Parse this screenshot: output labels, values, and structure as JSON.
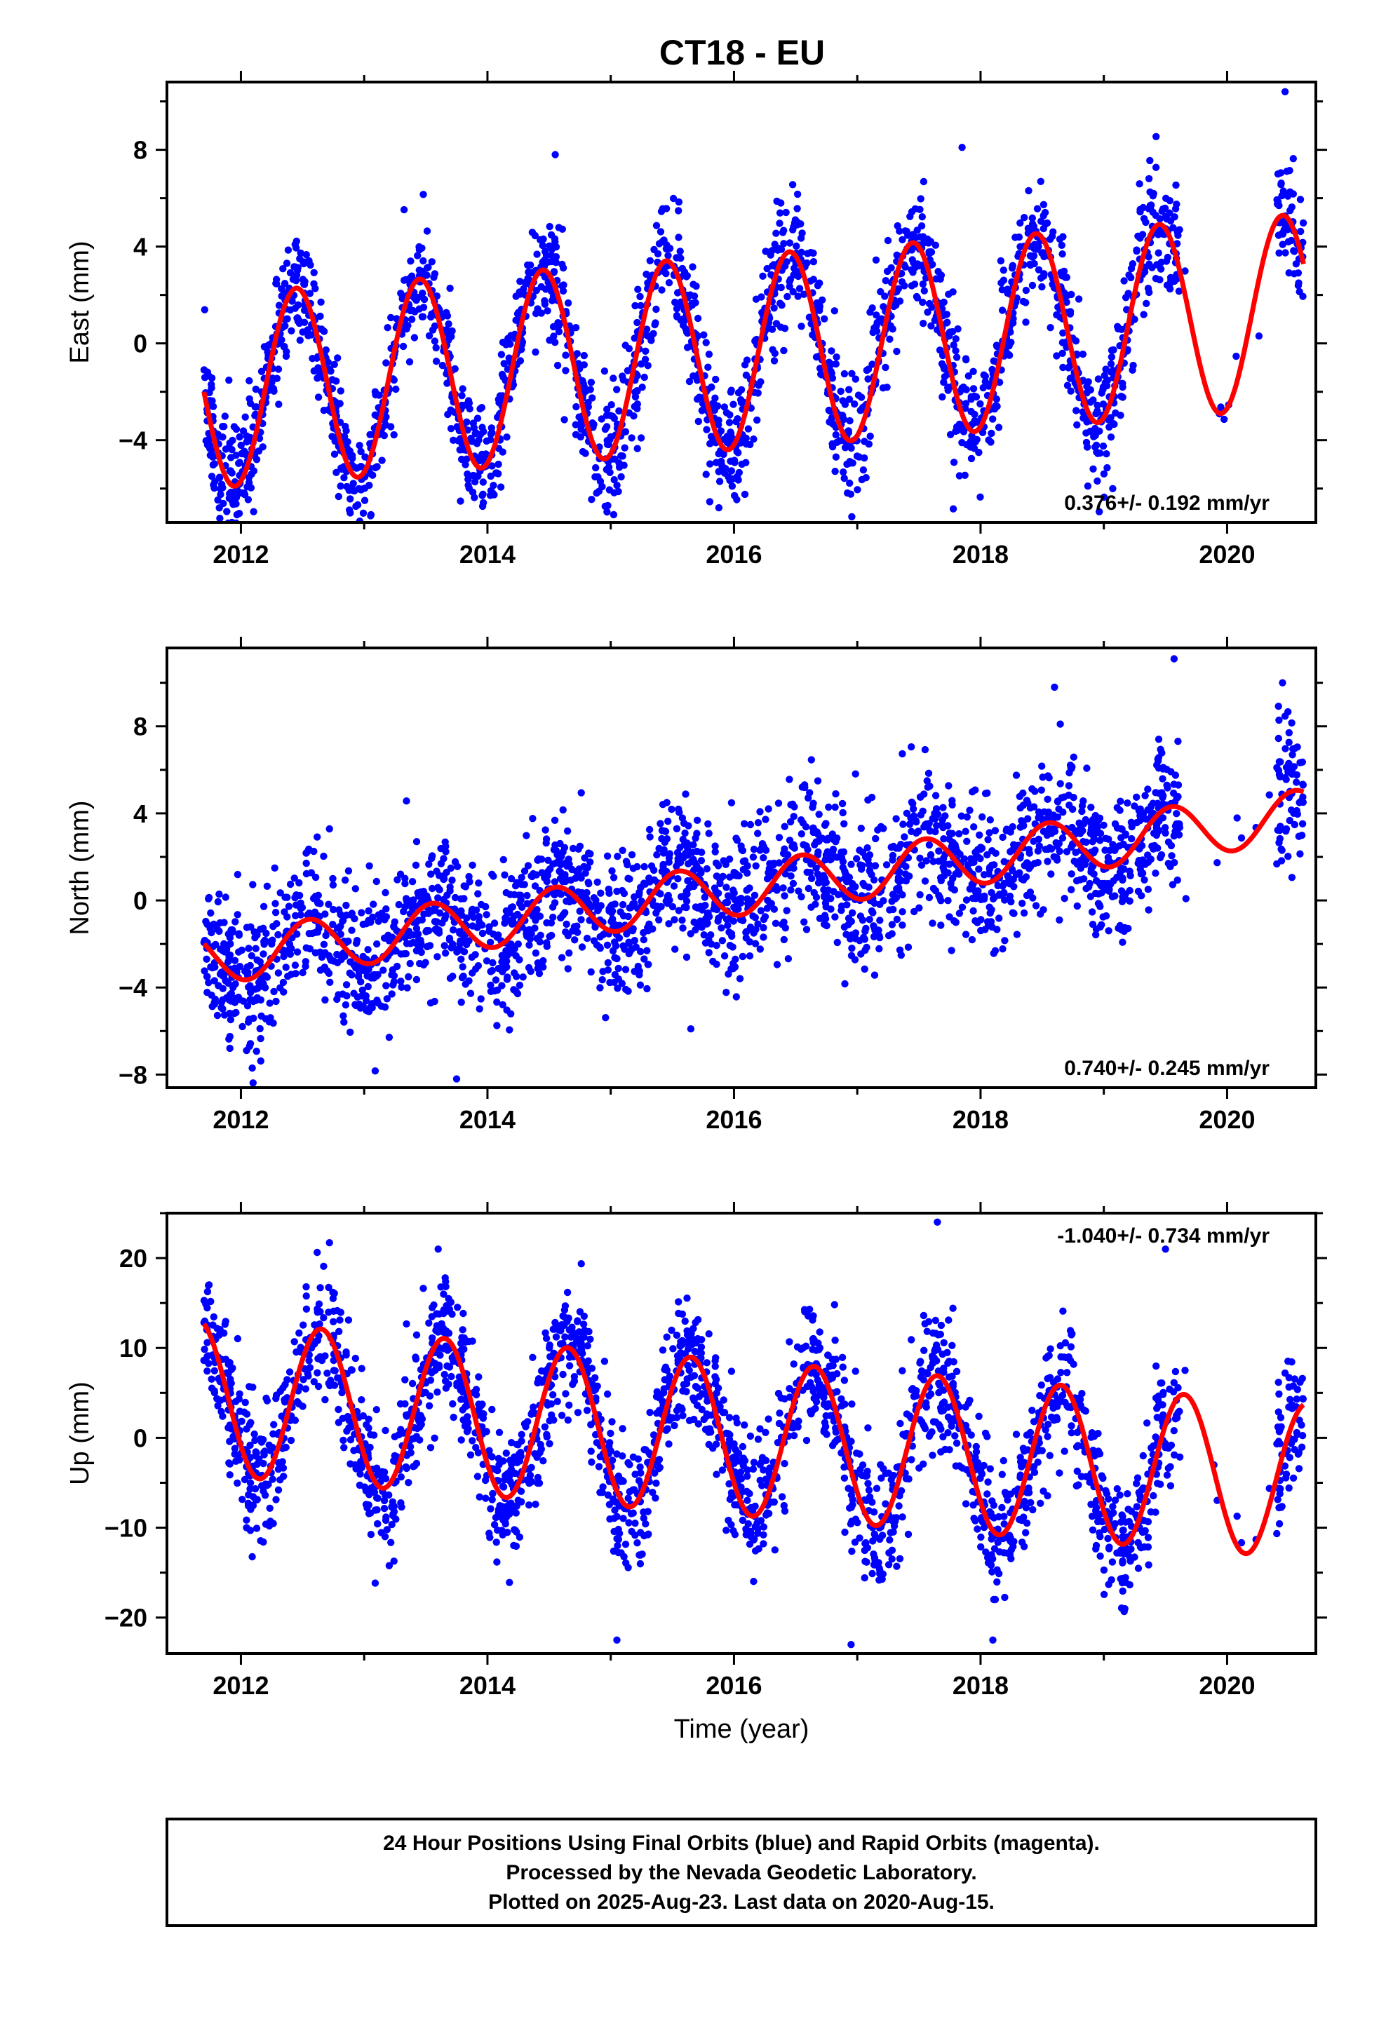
{
  "title": "CT18 - EU",
  "footer": {
    "line1": "24 Hour Positions Using Final Orbits (blue) and Rapid Orbits (magenta).",
    "line2": "Processed by the Nevada Geodetic Laboratory.",
    "line3": "Plotted on 2025-Aug-23. Last data on 2020-Aug-15."
  },
  "colors": {
    "points": "#0000ff",
    "fit": "#ff0000",
    "frame": "#000000"
  },
  "chart_data": [
    {
      "type": "scatter",
      "name": "east",
      "ylabel": "East (mm)",
      "xlabel": "",
      "xlim": [
        2011.4,
        2020.72
      ],
      "ylim": [
        -7.4,
        10.8
      ],
      "xticks": [
        2012,
        2014,
        2016,
        2018,
        2020
      ],
      "yticks": [
        -4,
        0,
        4,
        8
      ],
      "rate_label": "0.376+/- 0.192 mm/yr",
      "rate_label_position": "bottom-right",
      "data_start": 2011.7,
      "data_end": 2020.62,
      "gap": [
        2019.62,
        2020.4
      ],
      "fit": {
        "offset": -2.0,
        "trend": 0.376,
        "amplitude": 4.0,
        "phase_year": 2012.45,
        "trend_ref": 2011.7
      },
      "scatter_sd": 1.3,
      "outliers": [
        [
          2020.47,
          10.4
        ],
        [
          2014.55,
          7.8
        ],
        [
          2017.85,
          8.1
        ],
        [
          2018.87,
          -5.9
        ]
      ],
      "point_count": 2600
    },
    {
      "type": "scatter",
      "name": "north",
      "ylabel": "North (mm)",
      "xlabel": "",
      "xlim": [
        2011.4,
        2020.72
      ],
      "ylim": [
        -8.6,
        11.6
      ],
      "xticks": [
        2012,
        2014,
        2016,
        2018,
        2020
      ],
      "yticks": [
        -8,
        -4,
        0,
        4,
        8
      ],
      "rate_label": "0.740+/- 0.245 mm/yr",
      "rate_label_position": "bottom-right",
      "data_start": 2011.7,
      "data_end": 2020.62,
      "gap": [
        2019.62,
        2020.4
      ],
      "fit": {
        "offset": -2.7,
        "trend": 0.74,
        "amplitude": 1.2,
        "phase_year": 2012.55,
        "trend_ref": 2011.7
      },
      "scatter_sd": 1.6,
      "outliers": [
        [
          2019.57,
          11.1
        ],
        [
          2020.45,
          10.0
        ],
        [
          2013.75,
          -8.2
        ],
        [
          2015.65,
          -5.9
        ],
        [
          2018.6,
          9.8
        ]
      ],
      "point_count": 2600
    },
    {
      "type": "scatter",
      "name": "up",
      "ylabel": "Up (mm)",
      "xlabel": "Time (year)",
      "xlim": [
        2011.4,
        2020.72
      ],
      "ylim": [
        -24,
        25
      ],
      "xticks": [
        2012,
        2014,
        2016,
        2018,
        2020
      ],
      "yticks": [
        -20,
        -10,
        0,
        10,
        20
      ],
      "rate_label": "-1.040+/- 0.734 mm/yr",
      "rate_label_position": "top-right",
      "data_start": 2011.7,
      "data_end": 2020.62,
      "gap": [
        2019.62,
        2020.4
      ],
      "fit": {
        "offset": 4.5,
        "trend": -1.04,
        "amplitude": 8.6,
        "phase_year": 2012.65,
        "trend_ref": 2011.7
      },
      "scatter_sd": 3.6,
      "outliers": [
        [
          2017.65,
          24.0
        ],
        [
          2015.05,
          -22.5
        ],
        [
          2016.95,
          -23.0
        ],
        [
          2018.1,
          -22.5
        ],
        [
          2019.5,
          21.0
        ],
        [
          2013.6,
          21.0
        ]
      ],
      "point_count": 2600
    }
  ]
}
